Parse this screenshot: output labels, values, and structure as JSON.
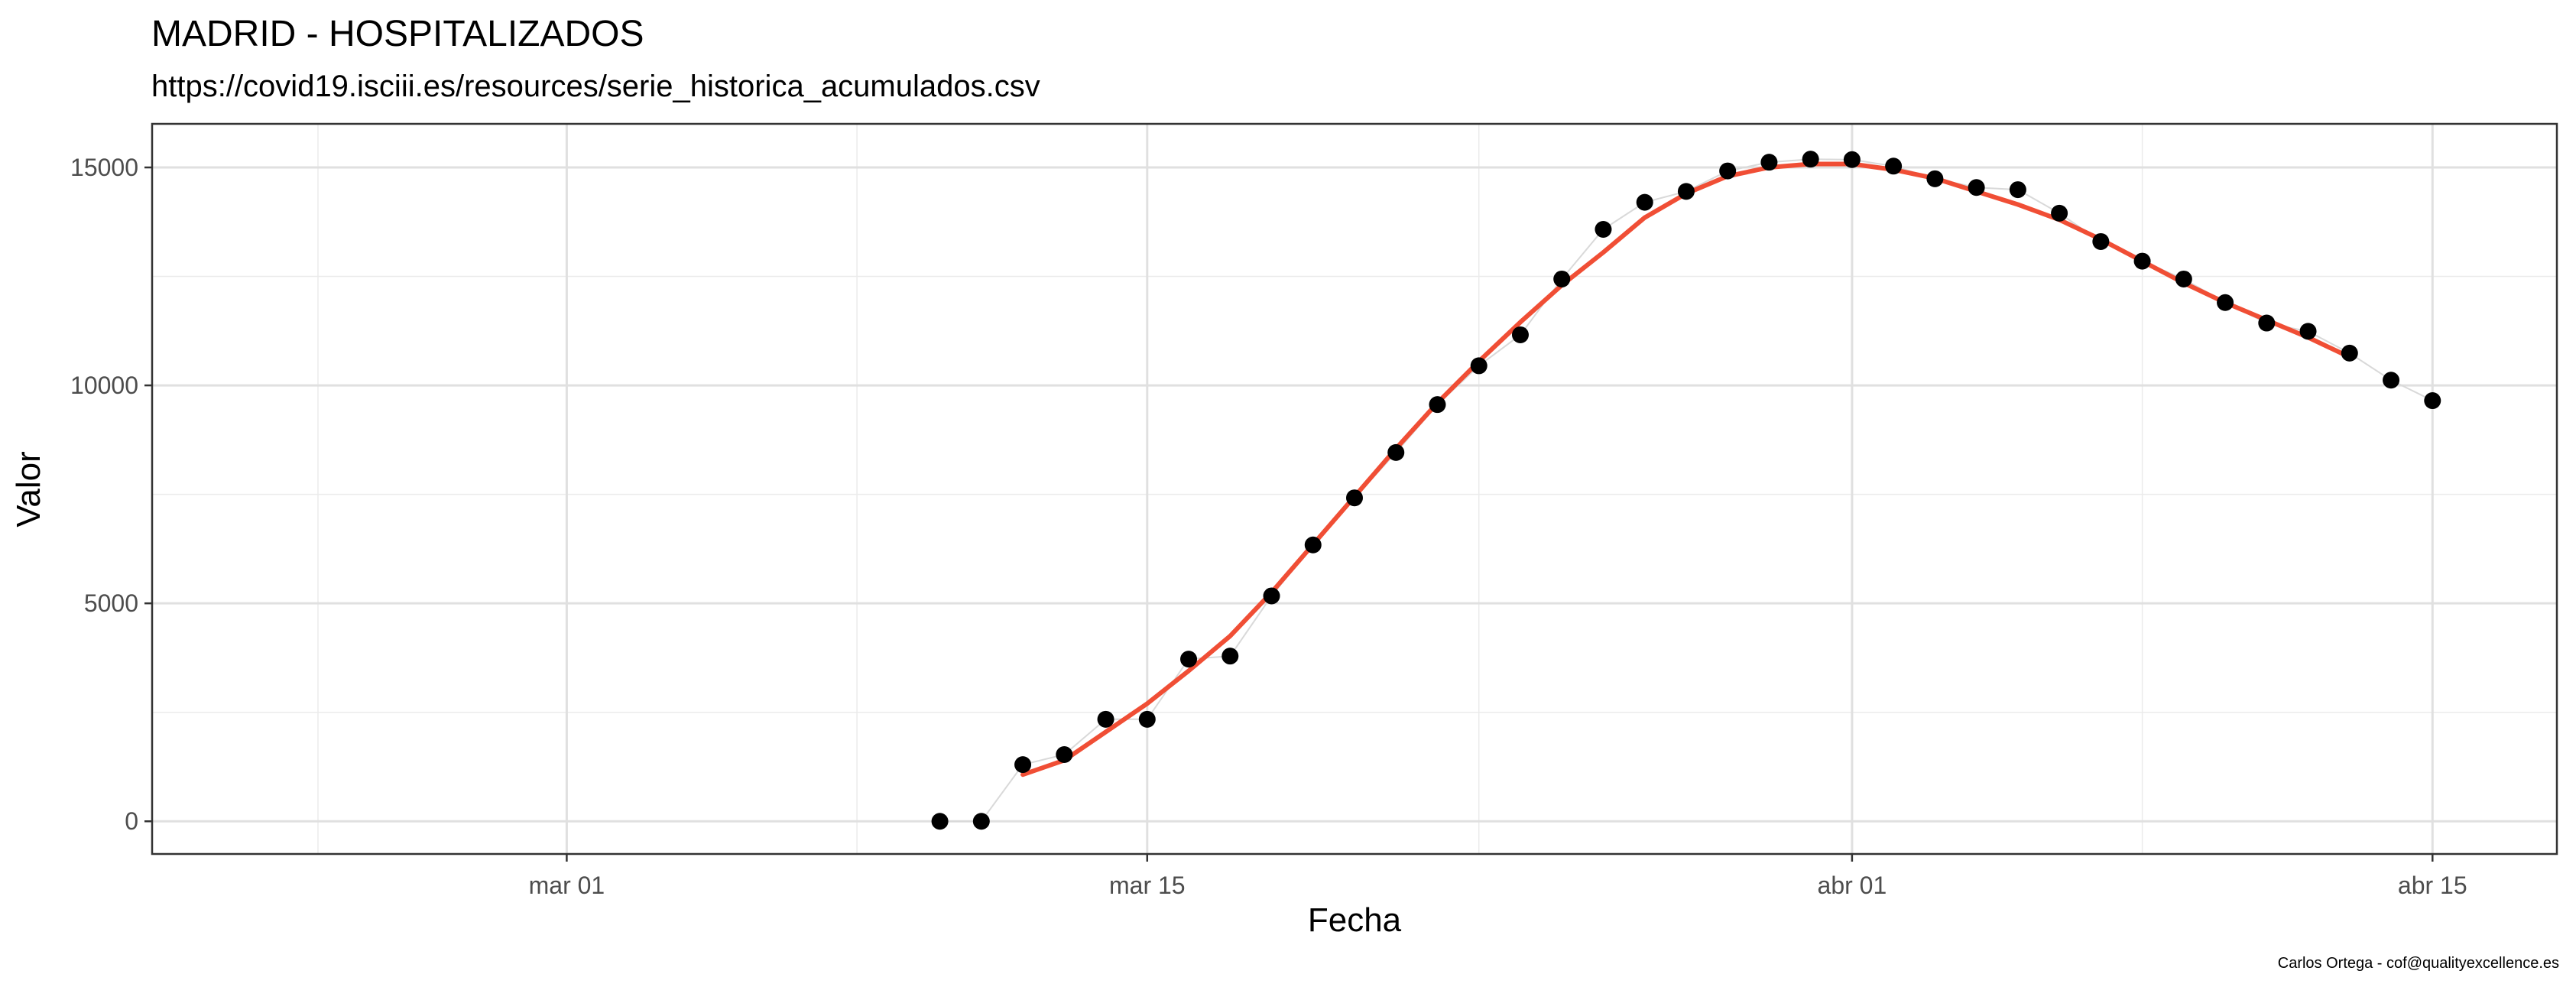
{
  "chart_data": {
    "type": "scatter",
    "title": "MADRID - HOSPITALIZADOS",
    "subtitle": "https://covid19.isciii.es/resources/serie_historica_acumulados.csv",
    "xlabel": "Fecha",
    "ylabel": "Valor",
    "caption": "Carlos Ortega - cof@qualityexcellence.es",
    "xlim": [
      "2020-02-20",
      "2020-04-18"
    ],
    "ylim": [
      -750,
      16000
    ],
    "x_ticks": [
      {
        "date": "2020-03-01",
        "label": "mar 01"
      },
      {
        "date": "2020-03-15",
        "label": "mar 15"
      },
      {
        "date": "2020-04-01",
        "label": "abr 01"
      },
      {
        "date": "2020-04-15",
        "label": "abr 15"
      }
    ],
    "x_minor_ticks": [
      "2020-02-24",
      "2020-03-08",
      "2020-03-23",
      "2020-04-08"
    ],
    "y_ticks": [
      0,
      5000,
      10000,
      15000
    ],
    "y_minor_ticks": [
      2500,
      7500,
      12500
    ],
    "grid": true,
    "colors": {
      "points": "#000000",
      "connector": "#d9d9d9",
      "smooth": "#f04e35"
    },
    "series": [
      {
        "type": "points",
        "x": [
          "2020-03-10",
          "2020-03-11",
          "2020-03-12",
          "2020-03-13",
          "2020-03-14",
          "2020-03-15",
          "2020-03-16",
          "2020-03-17",
          "2020-03-18",
          "2020-03-19",
          "2020-03-20",
          "2020-03-21",
          "2020-03-22",
          "2020-03-23",
          "2020-03-24",
          "2020-03-25",
          "2020-03-26",
          "2020-03-27",
          "2020-03-28",
          "2020-03-29",
          "2020-03-30",
          "2020-03-31",
          "2020-04-01",
          "2020-04-02",
          "2020-04-03",
          "2020-04-04",
          "2020-04-05",
          "2020-04-06",
          "2020-04-07",
          "2020-04-08",
          "2020-04-09",
          "2020-04-10",
          "2020-04-11",
          "2020-04-12",
          "2020-04-13",
          "2020-04-14",
          "2020-04-15"
        ],
        "y": [
          0,
          0,
          1300,
          1530,
          2340,
          2340,
          3720,
          3790,
          5170,
          6340,
          7420,
          8460,
          9560,
          10450,
          11160,
          12440,
          13580,
          14200,
          14450,
          14920,
          15120,
          15190,
          15180,
          15030,
          14740,
          14540,
          14490,
          13950,
          13300,
          12850,
          12440,
          11900,
          11430,
          11240,
          10740,
          10120,
          9650
        ]
      },
      {
        "type": "smooth",
        "x": [
          "2020-03-12",
          "2020-03-13",
          "2020-03-14",
          "2020-03-15",
          "2020-03-16",
          "2020-03-17",
          "2020-03-18",
          "2020-03-19",
          "2020-03-20",
          "2020-03-21",
          "2020-03-22",
          "2020-03-23",
          "2020-03-24",
          "2020-03-25",
          "2020-03-26",
          "2020-03-27",
          "2020-03-28",
          "2020-03-29",
          "2020-03-30",
          "2020-03-31",
          "2020-04-01",
          "2020-04-02",
          "2020-04-03",
          "2020-04-04",
          "2020-04-05",
          "2020-04-06",
          "2020-04-07",
          "2020-04-08",
          "2020-04-09",
          "2020-04-10",
          "2020-04-11",
          "2020-04-12",
          "2020-04-13"
        ],
        "y": [
          1070,
          1400,
          2050,
          2700,
          3450,
          4250,
          5250,
          6350,
          7450,
          8550,
          9600,
          10550,
          11450,
          12300,
          13050,
          13850,
          14400,
          14800,
          15000,
          15080,
          15080,
          14950,
          14750,
          14450,
          14150,
          13800,
          13350,
          12850,
          12350,
          11900,
          11500,
          11100,
          10650
        ]
      }
    ]
  }
}
